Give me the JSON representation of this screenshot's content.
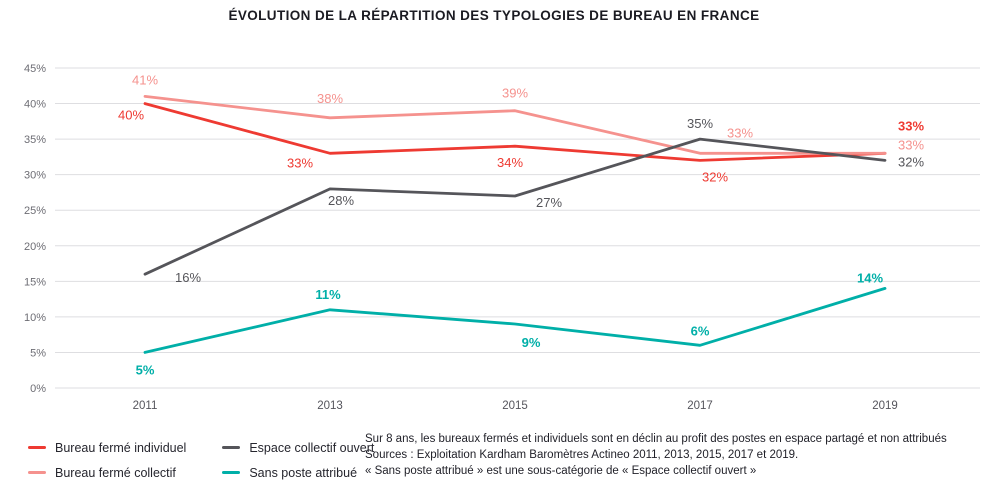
{
  "title": "ÉVOLUTION DE LA RÉPARTITION DES TYPOLOGIES DE BUREAU EN FRANCE",
  "chart_data": {
    "type": "line",
    "title": "ÉVOLUTION DE LA RÉPARTITION DES TYPOLOGIES DE BUREAU EN FRANCE",
    "x": [
      "2011",
      "2013",
      "2015",
      "2017",
      "2019"
    ],
    "series": [
      {
        "name": "Bureau fermé individuel",
        "color": "#ee3a32",
        "values": [
          40,
          33,
          34,
          32,
          33
        ],
        "value_labels": [
          "40%",
          "33%",
          "34%",
          "32%",
          "33%"
        ],
        "bold_value_labels": false,
        "bold_at": [
          4
        ],
        "label_offsets": [
          [
            -14,
            16
          ],
          [
            -30,
            14
          ],
          [
            -5,
            21
          ],
          [
            15,
            21
          ],
          [
            26,
            -23
          ]
        ]
      },
      {
        "name": "Bureau fermé collectif",
        "color": "#f5928e",
        "values": [
          41,
          38,
          39,
          33,
          33
        ],
        "value_labels": [
          "41%",
          "38%",
          "39%",
          "33%",
          "33%"
        ],
        "bold_value_labels": false,
        "bold_at": [],
        "label_offsets": [
          [
            0,
            -12
          ],
          [
            0,
            -15
          ],
          [
            0,
            -13
          ],
          [
            40,
            -16
          ],
          [
            26,
            -4
          ]
        ]
      },
      {
        "name": "Espace collectif ouvert",
        "color": "#55555a",
        "values": [
          16,
          28,
          27,
          35,
          32
        ],
        "value_labels": [
          "16%",
          "28%",
          "27%",
          "35%",
          "32%"
        ],
        "bold_value_labels": false,
        "bold_at": [],
        "label_offsets": [
          [
            43,
            8
          ],
          [
            11,
            16
          ],
          [
            34,
            11
          ],
          [
            0,
            -11
          ],
          [
            26,
            6
          ]
        ]
      },
      {
        "name": "Sans poste attribué",
        "color": "#00afa8",
        "values": [
          5,
          11,
          9,
          6,
          14
        ],
        "value_labels": [
          "5%",
          "11%",
          "9%",
          "6%",
          "14%"
        ],
        "bold_value_labels": true,
        "bold_at": [],
        "label_offsets": [
          [
            0,
            22
          ],
          [
            -2,
            -11
          ],
          [
            16,
            23
          ],
          [
            0,
            -10
          ],
          [
            -15,
            -6
          ]
        ]
      }
    ],
    "ylim": [
      0,
      45
    ],
    "ytick_step": 5,
    "yticks": [
      "0%",
      "5%",
      "10%",
      "15%",
      "20%",
      "25%",
      "30%",
      "35%",
      "40%",
      "45%"
    ],
    "grid": "horizontal",
    "legend_position": "bottom-left",
    "value_label_format": "percent"
  },
  "footnote": {
    "lines": [
      "Sur 8 ans, les bureaux fermés et individuels sont en déclin au profit des postes en espace partagé et non attribués",
      "Sources : Exploitation Kardham Baromètres Actineo 2011, 2013, 2015, 2017 et 2019.",
      "« Sans poste attribué » est une sous-catégorie de « Espace collectif ouvert »"
    ]
  },
  "colors": {
    "grid": "#dedee1",
    "y_tick_text": "#6d6d74",
    "x_tick_text": "#55555c",
    "title_text": "#1b1b22",
    "footnote_text": "#1f1f27"
  }
}
